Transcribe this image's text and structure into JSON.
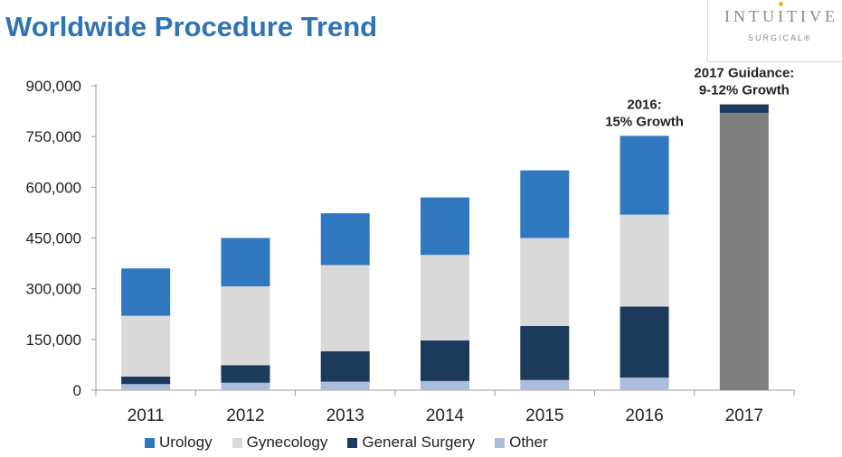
{
  "header": {
    "title": "Worldwide Procedure Trend"
  },
  "logo": {
    "top": "INTUITIVE",
    "bottom": "SURGICAL®"
  },
  "chart_data": {
    "type": "bar",
    "stacked": true,
    "title": "Worldwide Procedure Trend",
    "xlabel": "",
    "ylabel": "",
    "ylim": [
      0,
      900000
    ],
    "yticks": [
      0,
      150000,
      300000,
      450000,
      600000,
      750000,
      900000
    ],
    "ytick_labels": [
      "0",
      "150,000",
      "300,000",
      "450,000",
      "600,000",
      "750,000",
      "900,000"
    ],
    "categories": [
      "2011",
      "2012",
      "2013",
      "2014",
      "2015",
      "2016"
    ],
    "series": [
      {
        "name": "Other",
        "color": "#adbcdc",
        "values": [
          18000,
          22000,
          25000,
          27000,
          30000,
          37000
        ]
      },
      {
        "name": "General Surgery",
        "color": "#1b3a5c",
        "values": [
          22000,
          52000,
          90000,
          120000,
          160000,
          210000
        ]
      },
      {
        "name": "Gynecology",
        "color": "#d9d9d9",
        "values": [
          180000,
          233000,
          255000,
          253000,
          260000,
          272000
        ]
      },
      {
        "name": "Urology",
        "color": "#2f78c0",
        "values": [
          140000,
          143000,
          153000,
          170000,
          200000,
          233000
        ]
      }
    ],
    "legend_order": [
      "Urology",
      "Gynecology",
      "General Surgery",
      "Other"
    ],
    "legend_position": "bottom",
    "guidance": {
      "category": "2017",
      "base_value": 820000,
      "base_color": "#7f7f7f",
      "cap_value": 845000,
      "cap_color": "#1b3a5c"
    },
    "annotations": [
      {
        "category": "2016",
        "lines": [
          "2016:",
          "15% Growth"
        ]
      },
      {
        "category": "2017",
        "lines": [
          "2017 Guidance:",
          "9-12% Growth"
        ]
      }
    ],
    "grid": false
  }
}
